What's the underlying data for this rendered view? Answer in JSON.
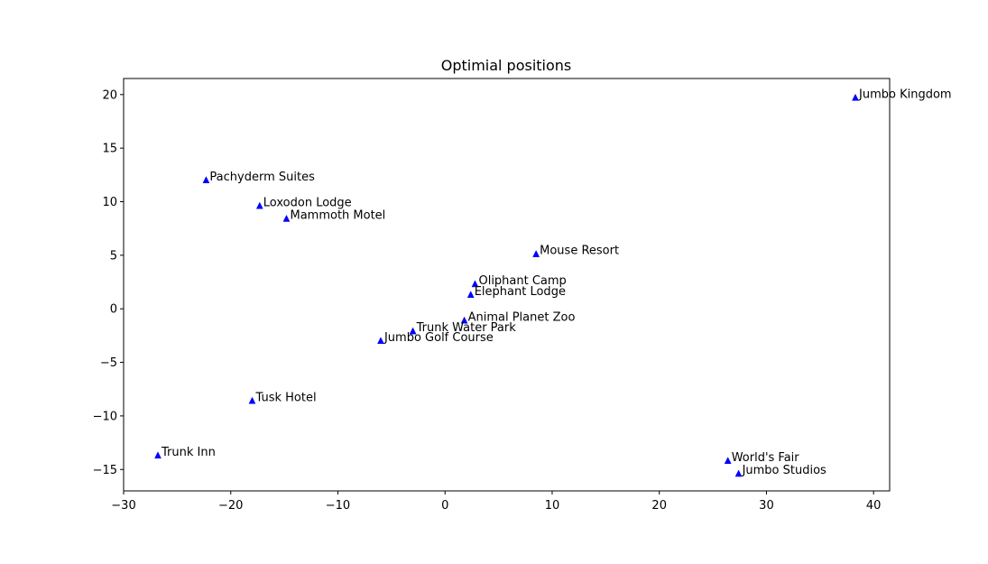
{
  "chart_data": {
    "type": "scatter",
    "title": "Optimial positions",
    "xlabel": "",
    "ylabel": "",
    "xlim": [
      -30,
      41.5
    ],
    "ylim": [
      -17,
      21.5
    ],
    "xticks": [
      -30,
      -20,
      -10,
      0,
      10,
      20,
      30,
      40
    ],
    "xtick_labels": [
      "−30",
      "−20",
      "−10",
      "0",
      "10",
      "20",
      "30",
      "40"
    ],
    "yticks": [
      -15,
      -10,
      -5,
      0,
      5,
      10,
      15,
      20
    ],
    "ytick_labels": [
      "−15",
      "−10",
      "−5",
      "0",
      "5",
      "10",
      "15",
      "20"
    ],
    "grid": false,
    "marker": "triangle-up",
    "marker_color": "#0000ff",
    "points": [
      {
        "label": "Jumbo Kingdom",
        "x": 38.3,
        "y": 19.7
      },
      {
        "label": "Pachyderm Suites",
        "x": -22.3,
        "y": 12.0
      },
      {
        "label": "Loxodon Lodge",
        "x": -17.3,
        "y": 9.6
      },
      {
        "label": "Mammoth Motel",
        "x": -14.8,
        "y": 8.4
      },
      {
        "label": "Mouse Resort",
        "x": 8.5,
        "y": 5.1
      },
      {
        "label": "Oliphant Camp",
        "x": 2.8,
        "y": 2.3
      },
      {
        "label": "Elephant Lodge",
        "x": 2.4,
        "y": 1.3
      },
      {
        "label": "Animal Planet Zoo",
        "x": 1.8,
        "y": -1.1
      },
      {
        "label": "Trunk Water Park",
        "x": -3.0,
        "y": -2.1
      },
      {
        "label": "Jumbo Golf Course",
        "x": -6.0,
        "y": -3.0
      },
      {
        "label": "Tusk Hotel",
        "x": -18.0,
        "y": -8.6
      },
      {
        "label": "Trunk Inn",
        "x": -26.8,
        "y": -13.7
      },
      {
        "label": "World's Fair",
        "x": 26.4,
        "y": -14.2
      },
      {
        "label": "Jumbo Studios",
        "x": 27.4,
        "y": -15.4
      }
    ]
  }
}
